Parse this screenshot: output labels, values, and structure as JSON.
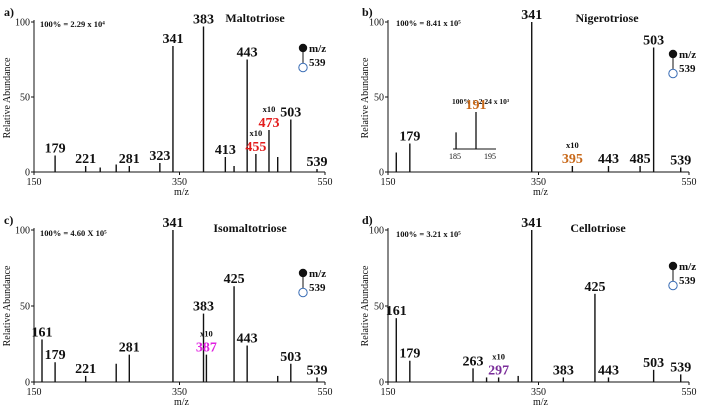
{
  "figure": {
    "y_axis_label": "Relative Abundance",
    "x_axis_label": "m/z",
    "legend": {
      "mz_label": "m/z",
      "mz_value": "539",
      "marker_top": "filled circle",
      "marker_bottom": "open circle"
    }
  },
  "chart_data": [
    {
      "panel": "a)",
      "type": "bar",
      "title": "Maltotriose",
      "scale_text": "100% = 2.29 x 10⁴",
      "xlabel": "m/z",
      "ylabel": "Relative Abundance",
      "xlim": [
        150,
        550
      ],
      "ylim": [
        0,
        100
      ],
      "x_ticks": [
        "150",
        "350",
        "550"
      ],
      "y_ticks": [
        "0",
        "50",
        "100"
      ],
      "sticks": [
        [
          179,
          11
        ],
        [
          221,
          4
        ],
        [
          241,
          3
        ],
        [
          263,
          5
        ],
        [
          281,
          4
        ],
        [
          323,
          6
        ],
        [
          341,
          84
        ],
        [
          383,
          97
        ],
        [
          413,
          10
        ],
        [
          425,
          4
        ],
        [
          443,
          75
        ],
        [
          455,
          12
        ],
        [
          473,
          28
        ],
        [
          485,
          10
        ],
        [
          503,
          35
        ],
        [
          539,
          2
        ]
      ],
      "peak_labels": [
        {
          "text": "179",
          "x": 179,
          "y": 11,
          "color": "#111111"
        },
        {
          "text": "221",
          "x": 221,
          "y": 4,
          "color": "#111111"
        },
        {
          "text": "281",
          "x": 281,
          "y": 4,
          "color": "#111111"
        },
        {
          "text": "323",
          "x": 323,
          "y": 6,
          "color": "#111111"
        },
        {
          "text": "341",
          "x": 341,
          "y": 84,
          "color": "#111111"
        },
        {
          "text": "383",
          "x": 383,
          "y": 97,
          "color": "#111111"
        },
        {
          "text": "413",
          "x": 413,
          "y": 10,
          "color": "#111111"
        },
        {
          "text": "443",
          "x": 443,
          "y": 75,
          "color": "#111111"
        },
        {
          "text": "455",
          "x": 455,
          "y": 12,
          "color": "#e31b1b",
          "x10": true
        },
        {
          "text": "473",
          "x": 473,
          "y": 28,
          "color": "#e31b1b",
          "x10": true
        },
        {
          "text": "503",
          "x": 503,
          "y": 35,
          "color": "#111111"
        },
        {
          "text": "539",
          "x": 539,
          "y": 2,
          "color": "#111111"
        }
      ],
      "x10_label": "x10"
    },
    {
      "panel": "b)",
      "type": "bar",
      "title": "Nigerotriose",
      "scale_text": "100% = 8.41 x 10⁵",
      "xlabel": "m/z",
      "ylabel": "Relative Abundance",
      "xlim": [
        150,
        550
      ],
      "ylim": [
        0,
        100
      ],
      "x_ticks": [
        "150",
        "350",
        "550"
      ],
      "y_ticks": [
        "0",
        "50",
        "100"
      ],
      "sticks": [
        [
          161,
          13
        ],
        [
          179,
          19
        ],
        [
          341,
          100
        ],
        [
          395,
          4
        ],
        [
          443,
          4
        ],
        [
          485,
          4
        ],
        [
          503,
          83
        ],
        [
          539,
          3
        ]
      ],
      "peak_labels": [
        {
          "text": "179",
          "x": 179,
          "y": 19,
          "color": "#111111"
        },
        {
          "text": "341",
          "x": 341,
          "y": 100,
          "color": "#111111"
        },
        {
          "text": "395",
          "x": 395,
          "y": 4,
          "color": "#c8691a",
          "x10": true
        },
        {
          "text": "443",
          "x": 443,
          "y": 4,
          "color": "#111111"
        },
        {
          "text": "485",
          "x": 485,
          "y": 4,
          "color": "#111111"
        },
        {
          "text": "503",
          "x": 503,
          "y": 83,
          "color": "#111111"
        },
        {
          "text": "539",
          "x": 539,
          "y": 3,
          "color": "#111111"
        }
      ],
      "x10_label": "x10",
      "inset": {
        "scale_text": "100% = 2.24 x 10³",
        "peak_label": "191",
        "peak_color": "#c8691a",
        "xlim": [
          185,
          195
        ],
        "x_ticks": [
          "185",
          "195"
        ],
        "sticks": [
          [
            185.3,
            45
          ],
          [
            191,
            100
          ]
        ]
      }
    },
    {
      "panel": "c)",
      "type": "bar",
      "title": "Isomaltotriose",
      "scale_text": "100% = 4.60 X 10⁵",
      "xlabel": "m/z",
      "ylabel": "Relative Abundance",
      "xlim": [
        150,
        550
      ],
      "ylim": [
        0,
        100
      ],
      "x_ticks": [
        "150",
        "350",
        "550"
      ],
      "y_ticks": [
        "0",
        "50",
        "100"
      ],
      "sticks": [
        [
          161,
          28
        ],
        [
          179,
          13
        ],
        [
          221,
          4
        ],
        [
          263,
          12
        ],
        [
          281,
          18
        ],
        [
          341,
          100
        ],
        [
          383,
          45
        ],
        [
          387,
          18
        ],
        [
          425,
          63
        ],
        [
          443,
          24
        ],
        [
          485,
          4
        ],
        [
          503,
          12
        ],
        [
          539,
          3
        ]
      ],
      "peak_labels": [
        {
          "text": "161",
          "x": 161,
          "y": 28,
          "color": "#111111"
        },
        {
          "text": "179",
          "x": 179,
          "y": 13,
          "color": "#111111"
        },
        {
          "text": "221",
          "x": 221,
          "y": 4,
          "color": "#111111"
        },
        {
          "text": "281",
          "x": 281,
          "y": 18,
          "color": "#111111"
        },
        {
          "text": "341",
          "x": 341,
          "y": 100,
          "color": "#111111"
        },
        {
          "text": "383",
          "x": 383,
          "y": 45,
          "color": "#111111"
        },
        {
          "text": "387",
          "x": 387,
          "y": 18,
          "color": "#e020e0",
          "x10": true
        },
        {
          "text": "425",
          "x": 425,
          "y": 63,
          "color": "#111111"
        },
        {
          "text": "443",
          "x": 443,
          "y": 24,
          "color": "#111111"
        },
        {
          "text": "503",
          "x": 503,
          "y": 12,
          "color": "#111111"
        },
        {
          "text": "539",
          "x": 539,
          "y": 3,
          "color": "#111111"
        }
      ],
      "x10_label": "x10"
    },
    {
      "panel": "d)",
      "type": "bar",
      "title": "Cellotriose",
      "scale_text": "100% = 3.21 x 10⁵",
      "xlabel": "m/z",
      "ylabel": "Relative Abundance",
      "xlim": [
        150,
        550
      ],
      "ylim": [
        0,
        100
      ],
      "x_ticks": [
        "150",
        "350",
        "550"
      ],
      "y_ticks": [
        "0",
        "50",
        "100"
      ],
      "sticks": [
        [
          161,
          42
        ],
        [
          179,
          14
        ],
        [
          263,
          9
        ],
        [
          281,
          3
        ],
        [
          297,
          3
        ],
        [
          323,
          4
        ],
        [
          341,
          100
        ],
        [
          383,
          3
        ],
        [
          425,
          58
        ],
        [
          443,
          3
        ],
        [
          503,
          8
        ],
        [
          539,
          5
        ]
      ],
      "peak_labels": [
        {
          "text": "161",
          "x": 161,
          "y": 42,
          "color": "#111111"
        },
        {
          "text": "179",
          "x": 179,
          "y": 14,
          "color": "#111111"
        },
        {
          "text": "263",
          "x": 263,
          "y": 9,
          "color": "#111111"
        },
        {
          "text": "297",
          "x": 297,
          "y": 3,
          "color": "#7a2d9a",
          "x10": true
        },
        {
          "text": "341",
          "x": 341,
          "y": 100,
          "color": "#111111"
        },
        {
          "text": "383",
          "x": 383,
          "y": 3,
          "color": "#111111"
        },
        {
          "text": "425",
          "x": 425,
          "y": 58,
          "color": "#111111"
        },
        {
          "text": "443",
          "x": 443,
          "y": 3,
          "color": "#111111"
        },
        {
          "text": "503",
          "x": 503,
          "y": 8,
          "color": "#111111"
        },
        {
          "text": "539",
          "x": 539,
          "y": 5,
          "color": "#111111"
        }
      ],
      "x10_label": "x10"
    }
  ]
}
